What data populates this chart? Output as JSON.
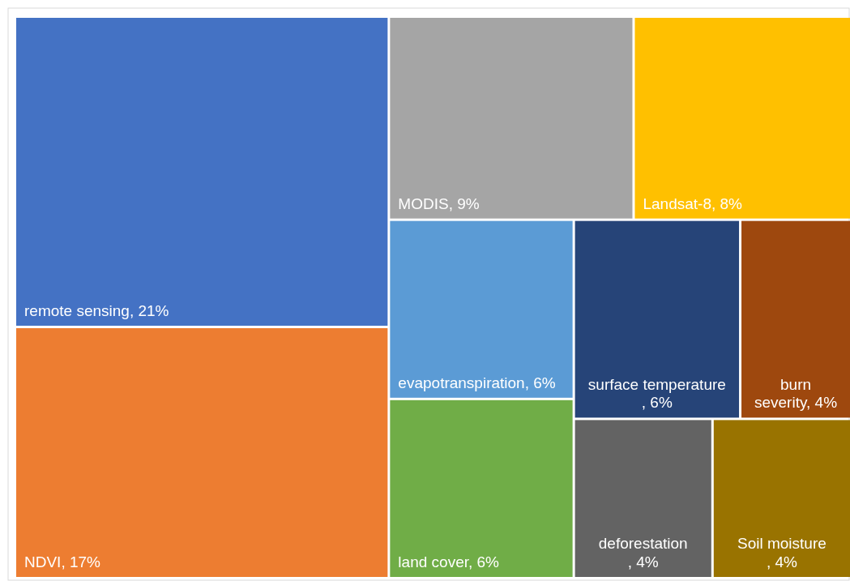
{
  "chart_data": {
    "type": "other",
    "categories": [
      "remote sensing",
      "NDVI",
      "MODIS",
      "Landsat-8",
      "evapotranspiration",
      "land cover",
      "surface temperature",
      "burn severity",
      "deforestation",
      "Soil moisture"
    ],
    "values": [
      21,
      17,
      9,
      8,
      6,
      6,
      6,
      4,
      4,
      4
    ],
    "value_labels": [
      ", 21%",
      ", 17%",
      ", 9%",
      ", 8%",
      ", 6%",
      ", 6%",
      ", 6%",
      ", 4%",
      ", 4%",
      ", 4%"
    ],
    "colors": [
      "#4472c4",
      "#ed7d31",
      "#a5a5a5",
      "#ffc000",
      "#5b9bd5",
      "#70ad47",
      "#264478",
      "#9e480e",
      "#636363",
      "#997300"
    ]
  }
}
